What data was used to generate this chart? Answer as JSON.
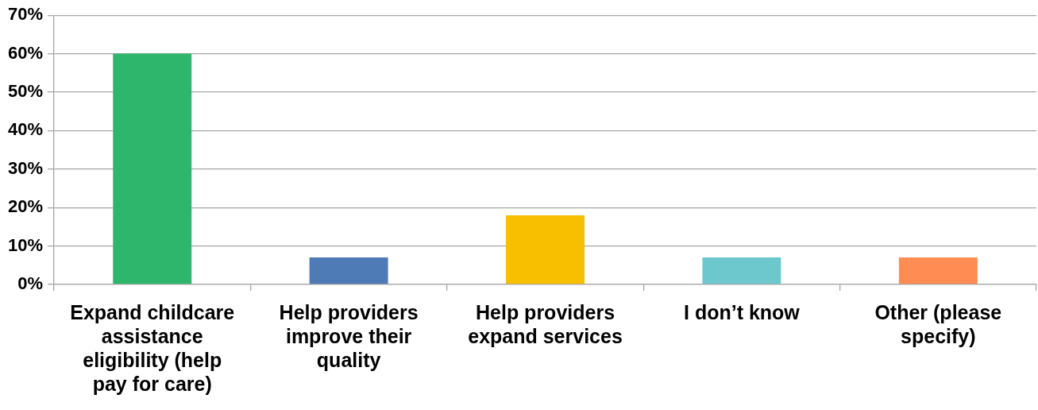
{
  "chart_data": {
    "type": "bar",
    "categories": [
      "Expand childcare assistance eligibility (help pay for care)",
      "Help providers improve their quality",
      "Help providers expand services",
      "I don’t know",
      "Other (please specify)"
    ],
    "values": [
      60,
      7,
      18,
      7,
      7
    ],
    "colors": [
      "#2eb66d",
      "#4e7ab5",
      "#f7bf00",
      "#6cc8cc",
      "#ff8c52"
    ],
    "ylim": [
      0,
      70
    ],
    "yticks": [
      {
        "value": 0,
        "label": "0%"
      },
      {
        "value": 10,
        "label": "10%"
      },
      {
        "value": 20,
        "label": "20%"
      },
      {
        "value": 30,
        "label": "30%"
      },
      {
        "value": 40,
        "label": "40%"
      },
      {
        "value": 50,
        "label": "50%"
      },
      {
        "value": 60,
        "label": "60%"
      },
      {
        "value": 70,
        "label": "70%"
      }
    ],
    "grid": "y",
    "legend": false
  }
}
